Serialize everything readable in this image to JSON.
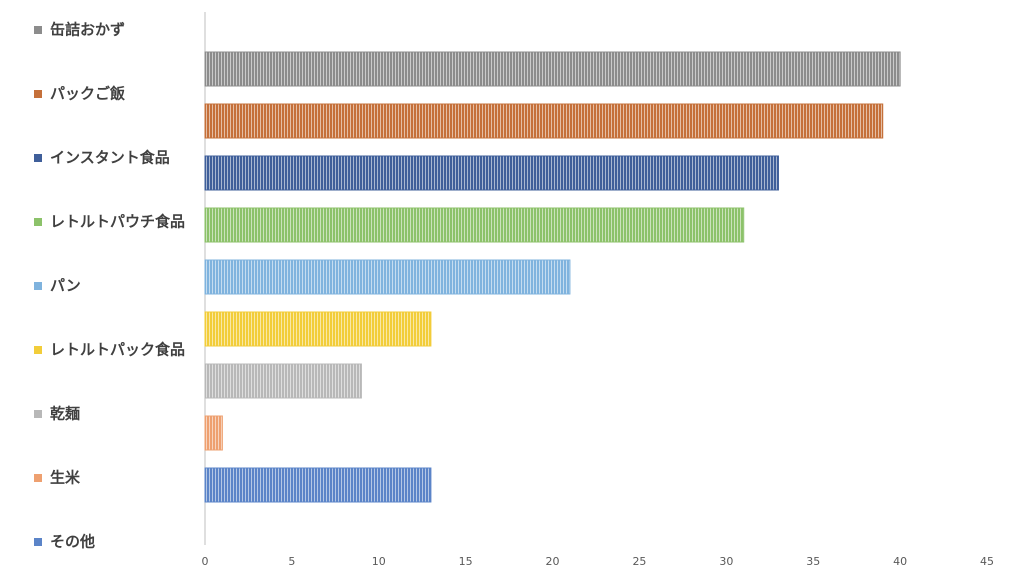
{
  "chart_data": {
    "type": "bar",
    "orientation": "horizontal",
    "series": [
      {
        "name": "缶詰おかず",
        "color": "#8c8c8c",
        "values": [
          40
        ]
      },
      {
        "name": "パックご飯",
        "color": "#c5703a",
        "values": [
          39
        ]
      },
      {
        "name": "インスタント食品",
        "color": "#3f5f9a",
        "values": [
          33
        ]
      },
      {
        "name": "レトルトパウチ食品",
        "color": "#8cc26a",
        "values": [
          31
        ]
      },
      {
        "name": "パン",
        "color": "#7fb3de",
        "values": [
          21
        ]
      },
      {
        "name": "レトルトパック食品",
        "color": "#f2cd3a",
        "values": [
          13
        ]
      },
      {
        "name": "乾麺",
        "color": "#b8b8b8",
        "values": [
          9
        ]
      },
      {
        "name": "生米",
        "color": "#eea070",
        "values": [
          1
        ]
      },
      {
        "name": "その他",
        "color": "#5b84c8",
        "values": [
          13
        ]
      }
    ],
    "xlim": [
      0,
      45
    ],
    "xticks": [
      0,
      5,
      10,
      15,
      20,
      25,
      30,
      35,
      40,
      45
    ],
    "legend": "left"
  }
}
